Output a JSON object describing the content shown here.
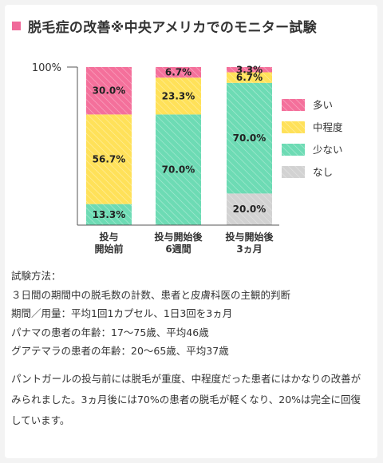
{
  "title": "脱毛症の改善※中央アメリカでのモニター試験",
  "colors": {
    "accent": "#f06a9a",
    "many": "#f4709b",
    "moderate": "#ffe159",
    "few": "#6ddbb4",
    "none": "#d2d2d2"
  },
  "chart_data": {
    "type": "bar",
    "stacked": true,
    "ylim": [
      0,
      100
    ],
    "y_tick_labels": [
      "100%"
    ],
    "categories": [
      [
        "投与",
        "開始前"
      ],
      [
        "投与開始後",
        "6週間"
      ],
      [
        "投与開始後",
        "3ヵ月"
      ]
    ],
    "series": [
      {
        "name": "なし",
        "color": "#d2d2d2",
        "values": [
          0,
          0,
          20.0
        ],
        "labels": [
          "",
          "",
          "20.0%"
        ]
      },
      {
        "name": "少ない",
        "color": "#6ddbb4",
        "values": [
          13.3,
          70.0,
          70.0
        ],
        "labels": [
          "13.3%",
          "70.0%",
          "70.0%"
        ]
      },
      {
        "name": "中程度",
        "color": "#ffe159",
        "values": [
          56.7,
          23.3,
          6.7
        ],
        "labels": [
          "56.7%",
          "23.3%",
          "6.7%"
        ]
      },
      {
        "name": "多い",
        "color": "#f4709b",
        "values": [
          30.0,
          6.7,
          3.3
        ],
        "labels": [
          "30.0%",
          "6.7%",
          "3.3%"
        ]
      }
    ],
    "legend": [
      "多い",
      "中程度",
      "少ない",
      "なし"
    ],
    "legend_position": "right",
    "grid": false
  },
  "method": {
    "heading": "試験方法：",
    "lines": [
      "３日間の期間中の脱毛数の計数、患者と皮膚科医の主観的判断",
      "期間／用量：平均1回1カプセル、1日3回を3ヵ月",
      "パナマの患者の年齢：17～75歳、平均46歳",
      "グアテマラの患者の年齢：20～65歳、平均37歳"
    ]
  },
  "description": "パントガールの投与前には脱毛が重度、中程度だった患者にはかなりの改善がみられました。3ヵ月後には70%の患者の脱毛が軽くなり、20%は完全に回復しています。"
}
